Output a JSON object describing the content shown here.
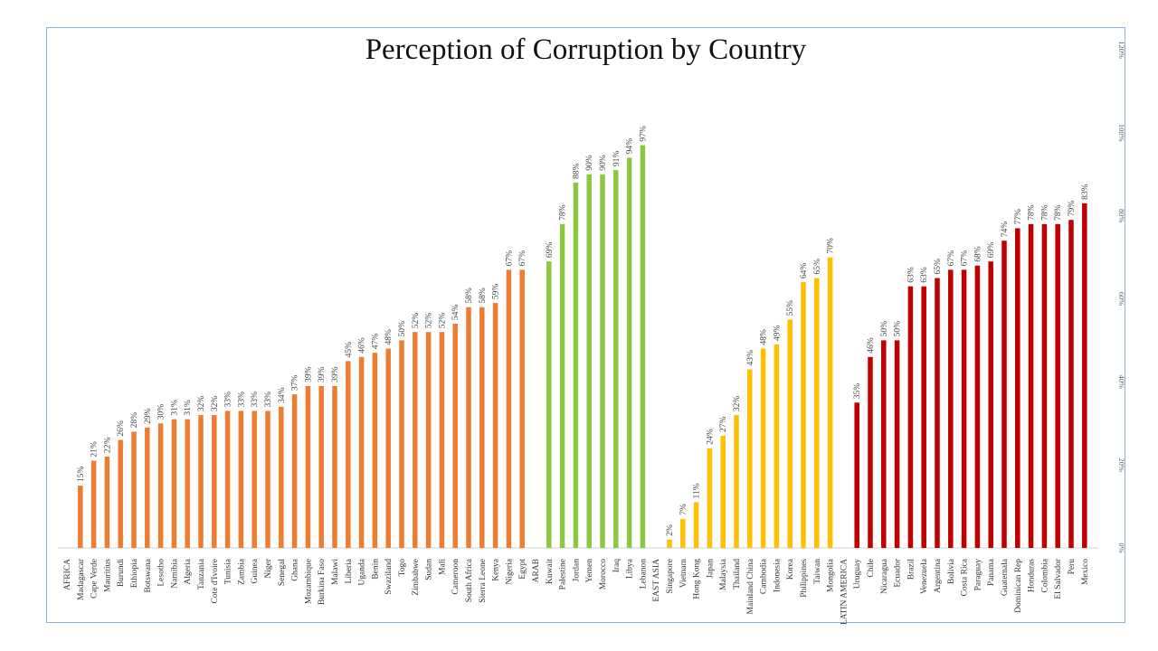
{
  "chart_data": {
    "type": "bar",
    "title": "Perception of Corruption by Country",
    "xlabel": "",
    "ylabel": "",
    "ylim": [
      0,
      120
    ],
    "y_ticks": [
      "0%",
      "20%",
      "40%",
      "60%",
      "80%",
      "100%",
      "120%"
    ],
    "grid": false,
    "value_suffix": "%",
    "colors": {
      "AFRICA": "#ed7d31",
      "ARAB": "#8dc63f",
      "EAST ASIA": "#ffc000",
      "LATIN AMERICA": "#c00000"
    },
    "groups": [
      {
        "name": "AFRICA",
        "categories": [
          "Madagascar",
          "Cape Verde",
          "Mauritius",
          "Burundi",
          "Ethiopia",
          "Botswana",
          "Lesotho",
          "Namibia",
          "Algeria",
          "Tanzania",
          "Cote d'Ivoire",
          "Tunisia",
          "Zambia",
          "Guinea",
          "Niger",
          "Senegal",
          "Ghana",
          "Mozambique",
          "Burkina Faso",
          "Malawi",
          "Liberia",
          "Uganda",
          "Benin",
          "Swaziland",
          "Togo",
          "Zimbabwe",
          "Sudan",
          "Mali",
          "Cameroon",
          "South Africa",
          "Sierra Leone",
          "Kenya",
          "Nigeria",
          "Egypt"
        ],
        "values": [
          15,
          21,
          22,
          26,
          28,
          29,
          30,
          31,
          31,
          32,
          32,
          33,
          33,
          33,
          33,
          34,
          37,
          39,
          39,
          39,
          45,
          46,
          47,
          48,
          50,
          52,
          52,
          52,
          54,
          58,
          58,
          59,
          67,
          67
        ]
      },
      {
        "name": "ARAB",
        "categories": [
          "Kuwait",
          "Palestine",
          "Jordan",
          "Yemen",
          "Morocco",
          "Iraq",
          "Libya",
          "Lebanon"
        ],
        "values": [
          69,
          78,
          88,
          90,
          90,
          91,
          94,
          97
        ]
      },
      {
        "name": "EAST ASIA",
        "categories": [
          "Singapore",
          "Vietnam",
          "Hong Kong",
          "Japan",
          "Malaysia",
          "Thailand",
          "Mainland China",
          "Cambodia",
          "Indonesia",
          "Korea",
          "Philippines",
          "Taiwan",
          "Mongolia"
        ],
        "values": [
          2,
          7,
          11,
          24,
          27,
          32,
          43,
          48,
          49,
          55,
          64,
          65,
          70
        ]
      },
      {
        "name": "LATIN AMERICA",
        "categories": [
          "Uruguay",
          "Chile",
          "Nicaragua",
          "Ecuador",
          "Brazil",
          "Venezuela",
          "Argentina",
          "Bolivia",
          "Costa Rica",
          "Paraguay",
          "Panama",
          "Guatemala",
          "Dominican Rep",
          "Honduras",
          "Colombia",
          "El Salvador",
          "Peru",
          "Mexico"
        ],
        "values": [
          35,
          46,
          50,
          50,
          63,
          63,
          65,
          67,
          67,
          68,
          69,
          74,
          77,
          78,
          78,
          78,
          79,
          83
        ]
      }
    ]
  }
}
